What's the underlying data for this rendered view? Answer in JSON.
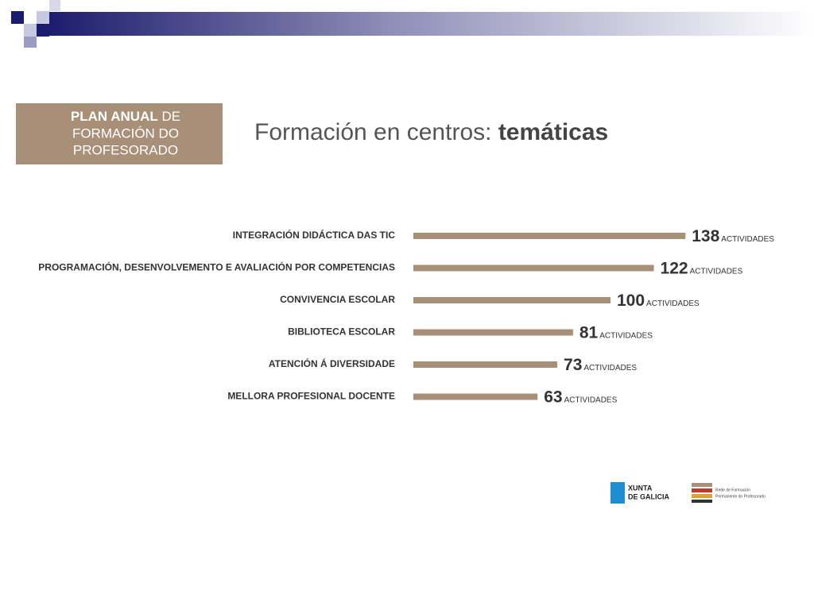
{
  "header": {
    "title_bold": "PLAN ANUAL",
    "title_lines": [
      "DE",
      "FORMACIÓN DO",
      "PROFESORADO"
    ]
  },
  "chart_data": {
    "type": "hbar",
    "title": "Formación en centros:",
    "title_bold": "temáticas",
    "categories": [
      "INTEGRACIÓN DIDÁCTICA DAS TIC",
      "PROGRAMACIÓN, DESENVOLVEMENTO E AVALIACIÓN POR COMPETENCIAS",
      "CONVIVENCIA ESCOLAR",
      "BIBLIOTECA ESCOLAR",
      "ATENCIÓN Á DIVERSIDADE",
      "MELLORA PROFESIONAL DOCENTE"
    ],
    "values": [
      138,
      122,
      100,
      81,
      73,
      63
    ],
    "unit_label": "ACTIVIDADES",
    "color": "#a88f78"
  },
  "logos": {
    "xunta": [
      "XUNTA",
      "DE GALICIA"
    ],
    "rede": [
      "Rede de Formación",
      "Permanente do Profesorado"
    ]
  }
}
